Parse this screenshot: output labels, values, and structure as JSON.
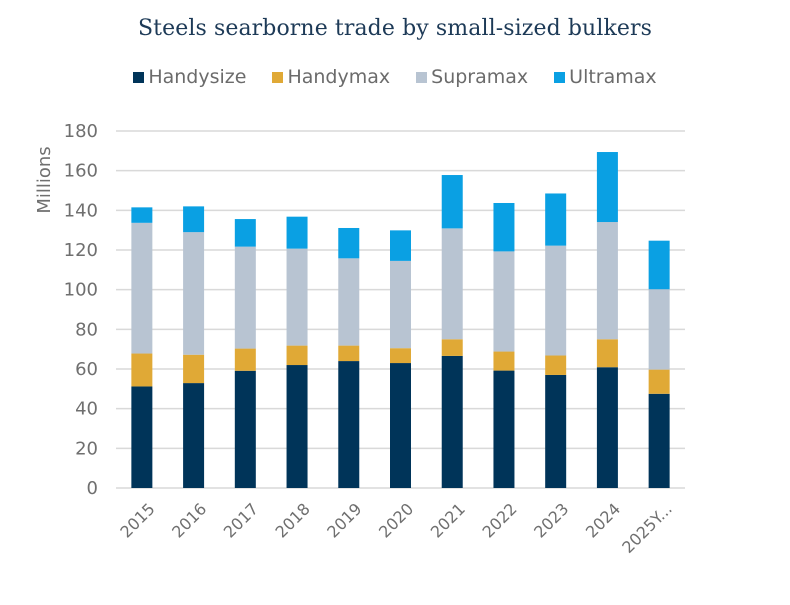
{
  "chart_data": {
    "type": "bar",
    "stacked": true,
    "title": "Steels searborne trade by small-sized bulkers",
    "xlabel": "",
    "ylabel": "Millions",
    "ylim": [
      0,
      180
    ],
    "yticks": [
      0,
      20,
      40,
      60,
      80,
      100,
      120,
      140,
      160,
      180
    ],
    "ytick_labels": [
      "0",
      "20",
      "40",
      "60",
      "80",
      "100",
      "120",
      "140",
      "160",
      "180"
    ],
    "grid": true,
    "legend_position": "top-center",
    "categories": [
      "2015",
      "2016",
      "2017",
      "2018",
      "2019",
      "2020",
      "2021",
      "2022",
      "2023",
      "2024",
      "2025Y..."
    ],
    "series": [
      {
        "name": "Handysize",
        "color": "#003459",
        "values": [
          51.2,
          52.9,
          59.1,
          62.0,
          64.0,
          63.0,
          66.6,
          59.2,
          57.0,
          60.9,
          47.5
        ]
      },
      {
        "name": "Handymax",
        "color": "#e0a936",
        "values": [
          16.6,
          14.3,
          11.2,
          9.8,
          7.8,
          7.5,
          8.4,
          9.6,
          9.8,
          14.1,
          12.2
        ]
      },
      {
        "name": "Supramax",
        "color": "#b8c4d2",
        "values": [
          65.9,
          61.8,
          51.4,
          48.9,
          44.0,
          44.0,
          55.9,
          50.5,
          55.4,
          59.1,
          40.5
        ]
      },
      {
        "name": "Ultramax",
        "color": "#0aa0e3",
        "values": [
          7.8,
          13.0,
          13.9,
          16.1,
          15.3,
          15.4,
          26.9,
          24.4,
          26.3,
          35.3,
          24.5
        ]
      }
    ]
  },
  "colors": {
    "title": "#1d3a57",
    "gridline": "#d9d9d9",
    "axis_text": "#6f6f6f"
  }
}
